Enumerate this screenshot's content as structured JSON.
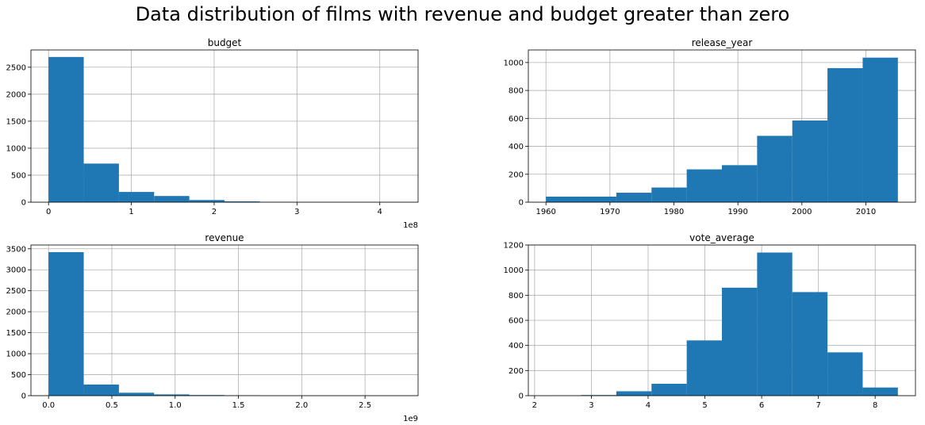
{
  "figure_title": "Data distribution of films with revenue and budget greater than zero",
  "style": {
    "bar_color": "#1f77b4",
    "grid_color": "#b0b0b0",
    "frame_color": "#000000"
  },
  "chart_data": [
    {
      "type": "bar",
      "title": "budget",
      "xlabel": "",
      "ylabel": "",
      "bin_edges": [
        0,
        0.425,
        0.85,
        1.275,
        1.7,
        2.125,
        2.55,
        2.975,
        3.4,
        3.825,
        4.25
      ],
      "values": [
        2690,
        715,
        190,
        115,
        40,
        15,
        3,
        1,
        1,
        1
      ],
      "xlim": [
        -0.2125,
        4.4625
      ],
      "ylim": [
        0,
        2820
      ],
      "xticks": [
        0,
        1,
        2,
        3,
        4
      ],
      "xtick_labels": [
        "0",
        "1",
        "2",
        "3",
        "4"
      ],
      "yticks": [
        0,
        500,
        1000,
        1500,
        2000,
        2500
      ],
      "ytick_labels": [
        "0",
        "500",
        "1000",
        "1500",
        "2000",
        "2500"
      ],
      "x_offset_label": "1e8",
      "grid": true
    },
    {
      "type": "bar",
      "title": "release_year",
      "xlabel": "",
      "ylabel": "",
      "bin_edges": [
        1960,
        1965.5,
        1971,
        1976.5,
        1982,
        1987.5,
        1993,
        1998.5,
        2004,
        2009.5,
        2015
      ],
      "values": [
        40,
        40,
        68,
        105,
        235,
        265,
        475,
        585,
        960,
        1035
      ],
      "xlim": [
        1957.25,
        2017.75
      ],
      "ylim": [
        0,
        1090
      ],
      "xticks": [
        1960,
        1970,
        1980,
        1990,
        2000,
        2010
      ],
      "xtick_labels": [
        "1960",
        "1970",
        "1980",
        "1990",
        "2000",
        "2010"
      ],
      "yticks": [
        0,
        200,
        400,
        600,
        800,
        1000
      ],
      "ytick_labels": [
        "0",
        "200",
        "400",
        "600",
        "800",
        "1000"
      ],
      "x_offset_label": "",
      "grid": true
    },
    {
      "type": "bar",
      "title": "revenue",
      "xlabel": "",
      "ylabel": "",
      "bin_edges": [
        0,
        0.278,
        0.556,
        0.834,
        1.112,
        1.39,
        1.668,
        1.946,
        2.224,
        2.502,
        2.78
      ],
      "values": [
        3420,
        265,
        70,
        30,
        15,
        5,
        2,
        1,
        1,
        1
      ],
      "xlim": [
        -0.139,
        2.919
      ],
      "ylim": [
        0,
        3590
      ],
      "xticks": [
        0.0,
        0.5,
        1.0,
        1.5,
        2.0,
        2.5
      ],
      "xtick_labels": [
        "0.0",
        "0.5",
        "1.0",
        "1.5",
        "2.0",
        "2.5"
      ],
      "yticks": [
        0,
        500,
        1000,
        1500,
        2000,
        2500,
        3000,
        3500
      ],
      "ytick_labels": [
        "0",
        "500",
        "1000",
        "1500",
        "2000",
        "2500",
        "3000",
        "3500"
      ],
      "x_offset_label": "1e9",
      "grid": true
    },
    {
      "type": "bar",
      "title": "vote_average",
      "xlabel": "",
      "ylabel": "",
      "bin_edges": [
        2.2,
        2.82,
        3.44,
        4.06,
        4.68,
        5.3,
        5.92,
        6.54,
        7.16,
        7.78,
        8.4
      ],
      "values": [
        1,
        5,
        35,
        95,
        440,
        860,
        1140,
        825,
        345,
        65
      ],
      "xlim": [
        1.89,
        8.71
      ],
      "ylim": [
        0,
        1200
      ],
      "xticks": [
        2,
        3,
        4,
        5,
        6,
        7,
        8
      ],
      "xtick_labels": [
        "2",
        "3",
        "4",
        "5",
        "6",
        "7",
        "8"
      ],
      "yticks": [
        0,
        200,
        400,
        600,
        800,
        1000,
        1200
      ],
      "ytick_labels": [
        "0",
        "200",
        "400",
        "600",
        "800",
        "1000",
        "1200"
      ],
      "x_offset_label": "",
      "grid": true
    }
  ]
}
